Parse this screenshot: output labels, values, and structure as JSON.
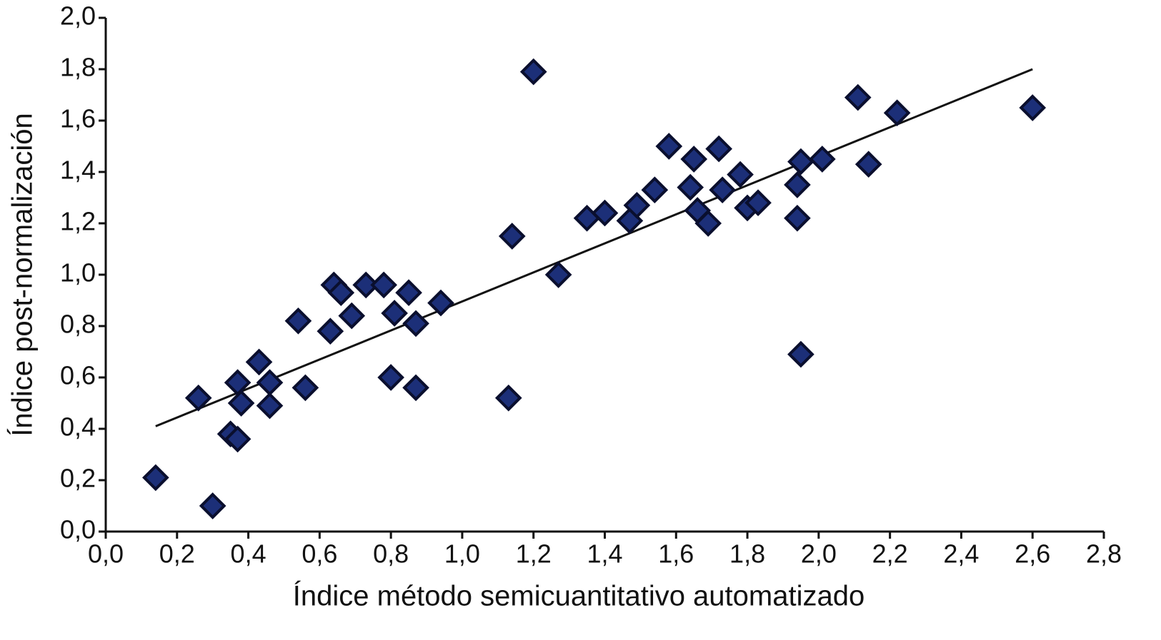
{
  "chart_data": {
    "type": "scatter",
    "xlabel": "Índice método semicuantitativo automatizado",
    "ylabel": "Índice post-normalización",
    "xlim": [
      0,
      2.8
    ],
    "ylim": [
      0,
      2.0
    ],
    "xticks": [
      {
        "value": 0,
        "label": "0,0"
      },
      {
        "value": 0.2,
        "label": "0,2"
      },
      {
        "value": 0.4,
        "label": "0,4"
      },
      {
        "value": 0.6,
        "label": "0,6"
      },
      {
        "value": 0.8,
        "label": "0,8"
      },
      {
        "value": 1.0,
        "label": "1,0"
      },
      {
        "value": 1.2,
        "label": "1,2"
      },
      {
        "value": 1.4,
        "label": "1,4"
      },
      {
        "value": 1.6,
        "label": "1,6"
      },
      {
        "value": 1.8,
        "label": "1,8"
      },
      {
        "value": 2.0,
        "label": "2,0"
      },
      {
        "value": 2.2,
        "label": "2,2"
      },
      {
        "value": 2.4,
        "label": "2,4"
      },
      {
        "value": 2.6,
        "label": "2,6"
      },
      {
        "value": 2.8,
        "label": "2,8"
      }
    ],
    "yticks": [
      {
        "value": 0,
        "label": "0,0"
      },
      {
        "value": 0.2,
        "label": "0,2"
      },
      {
        "value": 0.4,
        "label": "0,4"
      },
      {
        "value": 0.6,
        "label": "0,6"
      },
      {
        "value": 0.8,
        "label": "0,8"
      },
      {
        "value": 1.0,
        "label": "1,0"
      },
      {
        "value": 1.2,
        "label": "1,2"
      },
      {
        "value": 1.4,
        "label": "1,4"
      },
      {
        "value": 1.6,
        "label": "1,6"
      },
      {
        "value": 1.8,
        "label": "1,8"
      },
      {
        "value": 2.0,
        "label": "2,0"
      }
    ],
    "color": "#1c2f78",
    "x": [
      0.14,
      0.3,
      0.26,
      0.35,
      0.37,
      0.37,
      0.38,
      0.43,
      0.46,
      0.46,
      0.56,
      0.54,
      0.63,
      0.64,
      0.66,
      0.69,
      0.73,
      0.78,
      0.8,
      0.81,
      0.85,
      0.87,
      0.87,
      0.94,
      1.13,
      1.14,
      1.2,
      1.27,
      1.35,
      1.4,
      1.47,
      1.49,
      1.54,
      1.58,
      1.64,
      1.65,
      1.66,
      1.69,
      1.72,
      1.73,
      1.78,
      1.8,
      1.83,
      1.94,
      1.94,
      1.95,
      1.95,
      2.01,
      2.11,
      2.14,
      2.22,
      2.6
    ],
    "y": [
      0.21,
      0.1,
      0.52,
      0.38,
      0.36,
      0.58,
      0.5,
      0.66,
      0.58,
      0.49,
      0.56,
      0.82,
      0.78,
      0.96,
      0.93,
      0.84,
      0.96,
      0.96,
      0.6,
      0.85,
      0.93,
      0.81,
      0.56,
      0.89,
      0.52,
      1.15,
      1.79,
      1.0,
      1.22,
      1.24,
      1.21,
      1.27,
      1.33,
      1.5,
      1.34,
      1.45,
      1.25,
      1.2,
      1.49,
      1.33,
      1.39,
      1.26,
      1.28,
      1.35,
      1.22,
      1.44,
      0.69,
      1.45,
      1.69,
      1.43,
      1.63,
      1.65
    ],
    "trendline": {
      "x": [
        0.14,
        2.6
      ],
      "y": [
        0.41,
        1.8
      ]
    }
  }
}
